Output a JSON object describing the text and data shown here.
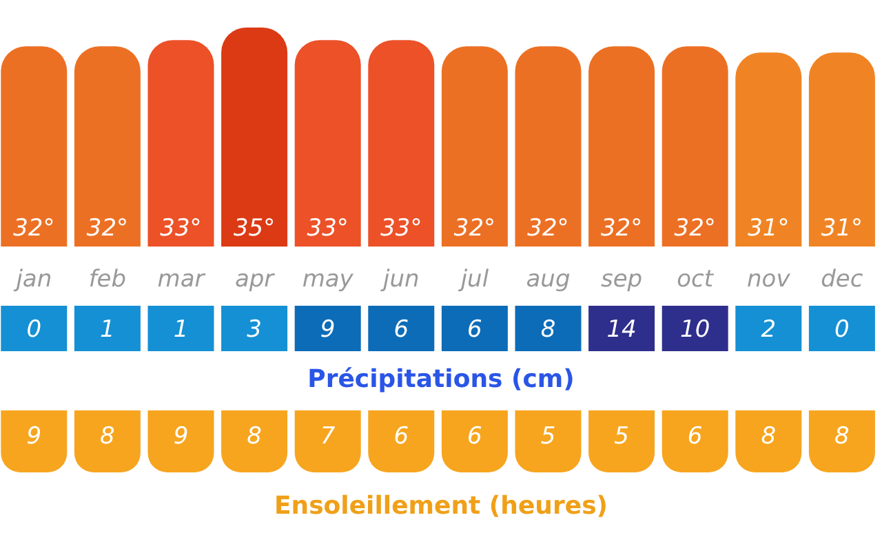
{
  "chart_data": [
    {
      "type": "bar",
      "categories": [
        "jan",
        "feb",
        "mar",
        "apr",
        "may",
        "jun",
        "jul",
        "aug",
        "sep",
        "oct",
        "nov",
        "dec"
      ],
      "values": [
        32,
        32,
        33,
        35,
        33,
        33,
        32,
        32,
        32,
        32,
        31,
        31
      ],
      "colors": [
        "#ec7024",
        "#ec7024",
        "#ec5128",
        "#dc3a14",
        "#ec5128",
        "#ec5128",
        "#ec7024",
        "#ec7024",
        "#ec7024",
        "#ec7024",
        "#f08424",
        "#f08424"
      ],
      "value_labels": [
        "32°",
        "32°",
        "33°",
        "35°",
        "33°",
        "33°",
        "32°",
        "32°",
        "32°",
        "32°",
        "31°",
        "31°"
      ]
    },
    {
      "type": "other",
      "categories": [
        null,
        null,
        null,
        null,
        null,
        null,
        null,
        null,
        null,
        null,
        null,
        null
      ],
      "values": [
        0,
        1,
        1,
        3,
        9,
        6,
        6,
        8,
        14,
        10,
        2,
        0
      ],
      "colors": [
        "#1590d4",
        "#1590d4",
        "#1590d4",
        "#1590d4",
        "#0c6cb8",
        "#0c6cb8",
        "#0c6cb8",
        "#0c6cb8",
        "#2e2f8c",
        "#2e2f8c",
        "#1590d4",
        "#1590d4"
      ],
      "data_labels": true,
      "xlabel": "Précipitations (cm)"
    },
    {
      "type": "other",
      "categories": [
        null,
        null,
        null,
        null,
        null,
        null,
        null,
        null,
        null,
        null,
        null,
        null
      ],
      "values": [
        9,
        8,
        9,
        8,
        7,
        6,
        6,
        5,
        5,
        6,
        8,
        8
      ],
      "colors": [
        "#f7a51e",
        "#f7a51e",
        "#f7a51e",
        "#f7a51e",
        "#f7a51e",
        "#f7a51e",
        "#f7a51e",
        "#f7a51e",
        "#f7a51e",
        "#f7a51e",
        "#f7a51e",
        "#f7a51e"
      ],
      "data_labels": true,
      "xlabel": "Ensoleillement (heures)"
    }
  ]
}
